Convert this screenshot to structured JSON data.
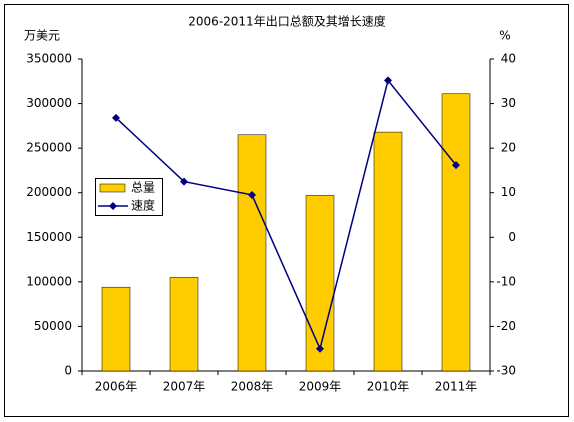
{
  "chart_data": {
    "type": "bar-line",
    "title": "2006-2011年出口总额及其增长速度",
    "y_label": "万美元",
    "y2_label": "%",
    "categories": [
      "2006年",
      "2007年",
      "2008年",
      "2009年",
      "2010年",
      "2011年"
    ],
    "series": [
      {
        "name": "总量",
        "type": "bar",
        "color": "#FFCC00",
        "values": [
          94000,
          105000,
          265000,
          197000,
          268000,
          311000
        ]
      },
      {
        "name": "速度",
        "type": "line",
        "color": "#000080",
        "axis": "y2",
        "values": [
          26.8,
          12.5,
          9.5,
          -25,
          35.2,
          16.2
        ]
      }
    ],
    "ylim": [
      0,
      350000
    ],
    "yticks": [
      0,
      50000,
      100000,
      150000,
      200000,
      250000,
      300000,
      350000
    ],
    "y2lim": [
      -30,
      40
    ],
    "y2ticks": [
      -30,
      -20,
      -10,
      0,
      10,
      20,
      30,
      40
    ],
    "grid": false,
    "legend": "left"
  }
}
